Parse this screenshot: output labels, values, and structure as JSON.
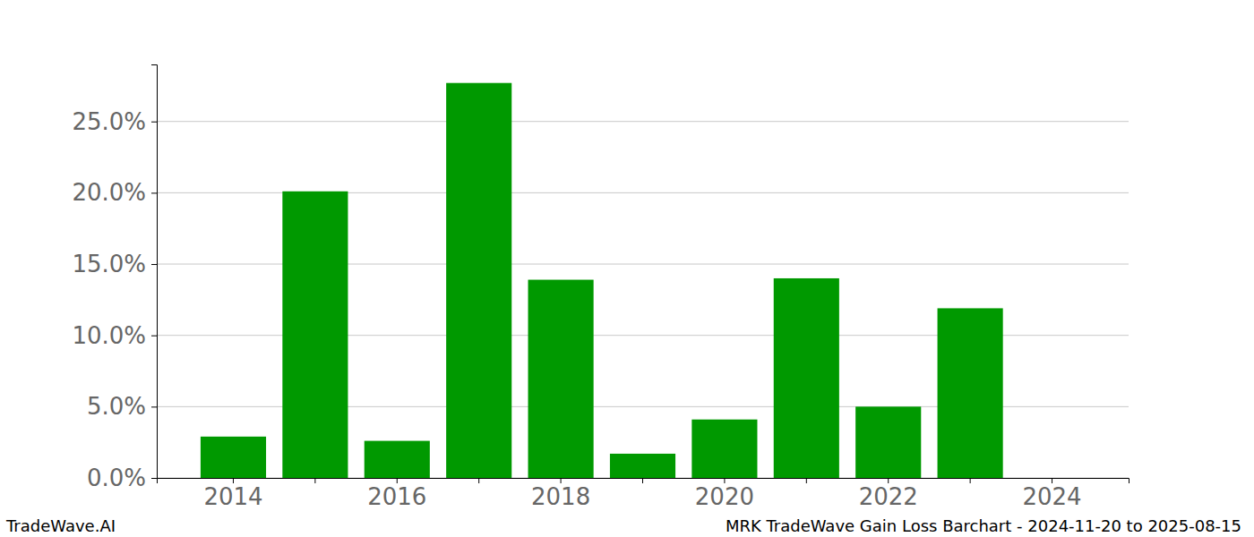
{
  "chart_data": {
    "type": "bar",
    "title": "MRK TradeWave Gain Loss Barchart - 2024-11-20 to 2025-08-15",
    "source": "TradeWave.AI",
    "categories": [
      "2014",
      null,
      "2016",
      null,
      "2018",
      null,
      "2020",
      null,
      "2022",
      null,
      "2024"
    ],
    "values": [
      2.9,
      20.1,
      2.6,
      27.7,
      13.9,
      1.7,
      4.1,
      14.0,
      5.0,
      11.9,
      0
    ],
    "color": "#009900",
    "ylim": [
      0,
      29.0
    ],
    "yticks": [
      {
        "value": 0,
        "label": "0.0%"
      },
      {
        "value": 5,
        "label": "5.0%"
      },
      {
        "value": 10,
        "label": "10.0%"
      },
      {
        "value": 15,
        "label": "15.0%"
      },
      {
        "value": 20,
        "label": "20.0%"
      },
      {
        "value": 25,
        "label": "25.0%"
      }
    ],
    "grid": true
  }
}
